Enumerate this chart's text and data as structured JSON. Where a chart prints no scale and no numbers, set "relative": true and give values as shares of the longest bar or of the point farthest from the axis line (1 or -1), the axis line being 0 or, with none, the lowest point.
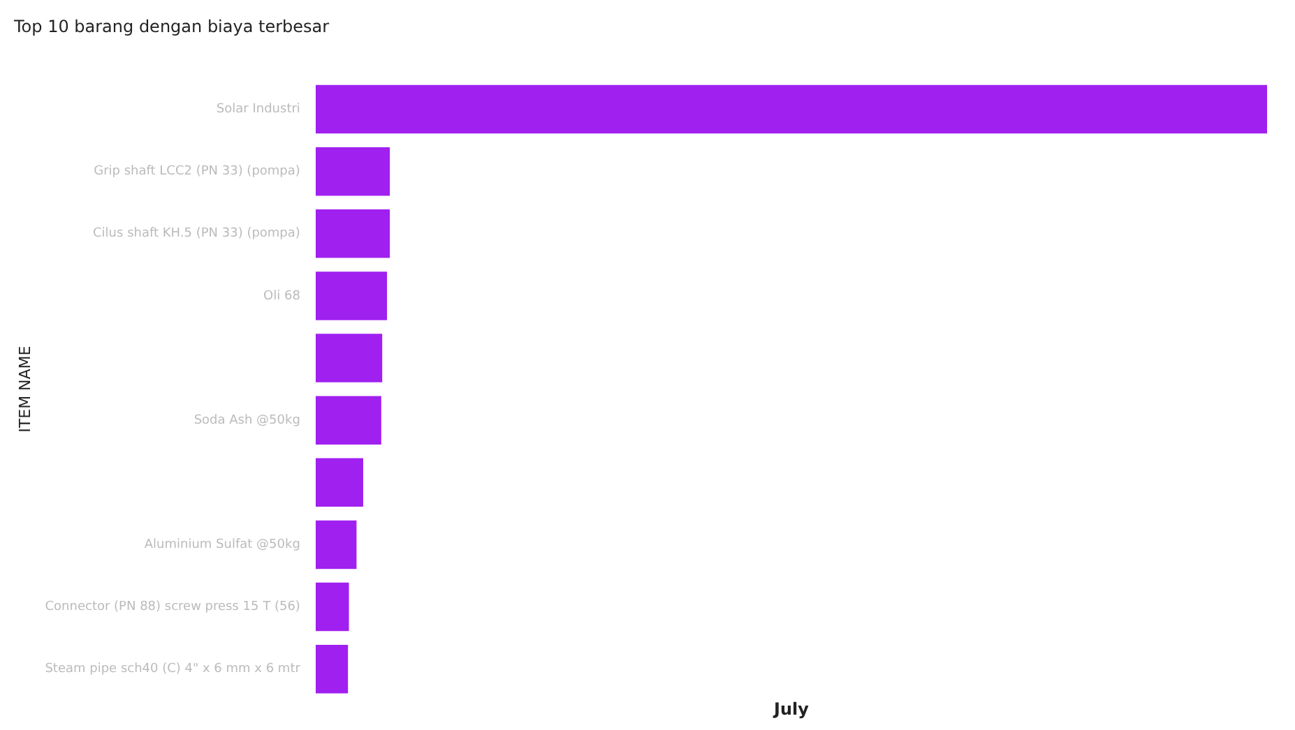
{
  "chart_data": {
    "type": "bar",
    "orientation": "horizontal",
    "title": "Top 10 barang dengan biaya terbesar",
    "xlabel": "July",
    "ylabel": "ITEM NAME",
    "categories": [
      "Solar Industri",
      "Grip shaft LCC2 (PN 33) (pompa)",
      "Cilus shaft KH.5 (PN 33) (pompa)",
      "Oli 68",
      null,
      "Soda Ash @50kg",
      null,
      "Aluminium Sulfat @50kg",
      "Connector (PN 88) screw press 15 T (56)",
      "Steam pipe sch40 (C) 4\" x 6 mm x 6 mtr"
    ],
    "values": [
      1,
      0.078,
      0.078,
      0.075,
      0.07,
      0.069,
      0.05,
      0.043,
      0.035,
      0.034
    ],
    "relative": true,
    "color": "#a020f0"
  }
}
